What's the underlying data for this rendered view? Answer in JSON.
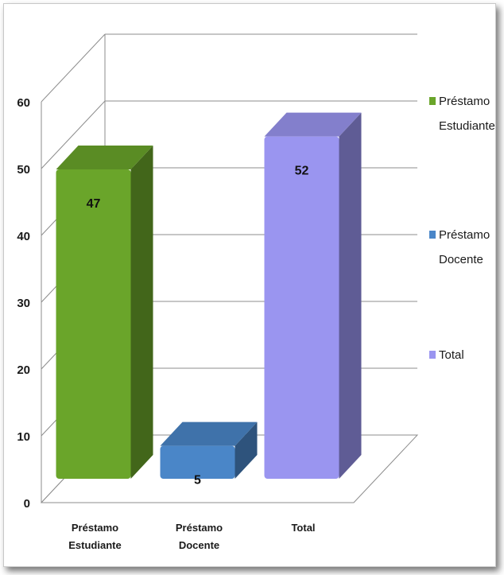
{
  "chart_data": {
    "type": "bar",
    "categories": [
      "Préstamo Estudiante",
      "Préstamo Docente",
      "Total"
    ],
    "category_lines": [
      [
        "Préstamo",
        "Estudiante"
      ],
      [
        "Préstamo",
        "Docente"
      ],
      [
        "Total"
      ]
    ],
    "series": [
      {
        "name": "Préstamo Estudiante",
        "name_lines": [
          "Préstamo",
          "Estudiante"
        ],
        "values": [
          47,
          null,
          null
        ],
        "color": "#6aa52a"
      },
      {
        "name": "Préstamo Docente",
        "name_lines": [
          "Préstamo",
          "Docente"
        ],
        "values": [
          null,
          5,
          null
        ],
        "color": "#4a86c8"
      },
      {
        "name": "Total",
        "name_lines": [
          "Total"
        ],
        "values": [
          null,
          null,
          52
        ],
        "color": "#9a95f0"
      }
    ],
    "data_labels": [
      "47",
      "5",
      "52"
    ],
    "ylim": [
      0,
      60
    ],
    "yticks": [
      "0",
      "10",
      "20",
      "30",
      "40",
      "50",
      "60"
    ],
    "grid": true,
    "legend": "right",
    "style": "3d-column"
  }
}
